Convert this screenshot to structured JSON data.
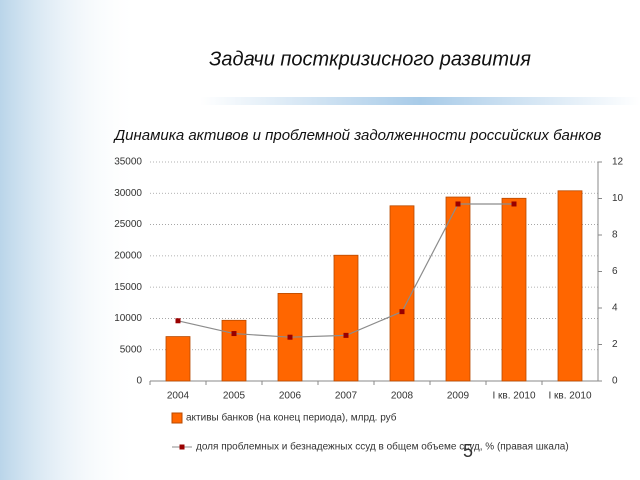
{
  "slide_title": "Задачи посткризисного развития",
  "page_number": "5",
  "chart_data": {
    "type": "bar",
    "title": "Динамика активов и проблемной задолженности российских банков",
    "categories": [
      "2004",
      "2005",
      "2006",
      "2007",
      "2008",
      "2009",
      "I кв. 2010",
      "I кв. 2010"
    ],
    "series": [
      {
        "name": "активы банков (на конец периода), млрд. руб",
        "color": "#ff6600",
        "values": [
          7100,
          9700,
          14000,
          20100,
          28000,
          29400,
          29200,
          30400
        ]
      },
      {
        "name": "доля проблемных и безнадежных ссуд в общем объеме ссуд, % (правая шкала)",
        "color": "#990000",
        "axis": "y2",
        "type": "line",
        "values": [
          3.3,
          2.6,
          2.4,
          2.5,
          3.8,
          9.7,
          9.7,
          null
        ]
      }
    ],
    "ylim": [
      0,
      35000
    ],
    "yticks": [
      0,
      5000,
      10000,
      15000,
      20000,
      25000,
      30000,
      35000
    ],
    "y2lim": [
      0,
      12
    ],
    "y2ticks": [
      0,
      2,
      4,
      6,
      8,
      10,
      12
    ],
    "grid": true
  }
}
